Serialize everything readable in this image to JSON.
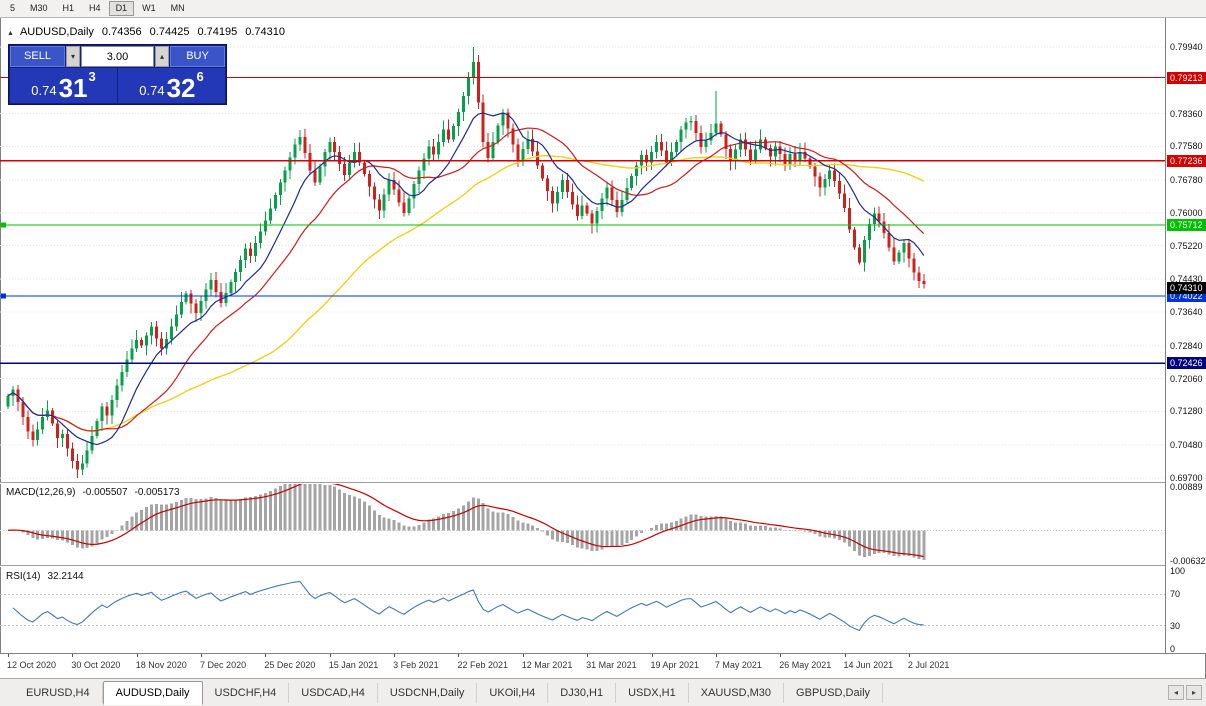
{
  "toolbar": {
    "timeframes": [
      "5",
      "M30",
      "H1",
      "H4",
      "D1",
      "W1",
      "MN"
    ],
    "active": "D1"
  },
  "chart_header": {
    "symbol": "AUDUSD,Daily",
    "open": "0.74356",
    "high": "0.74425",
    "low": "0.74195",
    "close": "0.74310"
  },
  "trade_widget": {
    "sell_label": "SELL",
    "buy_label": "BUY",
    "volume": "3.00",
    "sell_price_prefix": "0.74",
    "sell_price_main": "31",
    "sell_price_sup": "3",
    "buy_price_prefix": "0.74",
    "buy_price_main": "32",
    "buy_price_sup": "6"
  },
  "price_axis": {
    "ticks": [
      "0.79940",
      "0.78360",
      "0.77580",
      "0.76780",
      "0.76000",
      "0.75220",
      "0.74430",
      "0.73640",
      "0.72840",
      "0.72060",
      "0.71280",
      "0.70480",
      "0.69700"
    ],
    "levels": [
      {
        "value": 0.79213,
        "label": "0.79213",
        "color": "#d40000",
        "handle": false
      },
      {
        "value": 0.77236,
        "label": "0.77236",
        "color": "#d40000",
        "handle": false
      },
      {
        "value": 0.75712,
        "label": "0.75712",
        "color": "#00c000",
        "handle": true
      },
      {
        "value": 0.74022,
        "label": "0.74022",
        "color": "#0033e0",
        "handle": true
      },
      {
        "value": 0.72426,
        "label": "0.72426",
        "color": "#000080",
        "handle": false
      }
    ],
    "current_price": {
      "value": 0.7431,
      "label": "0.74310",
      "color": "#000000"
    }
  },
  "macd_panel": {
    "label": "MACD(12,26,9)",
    "value1": "-0.005507",
    "value2": "-0.005173",
    "axis_max": "0.00889",
    "axis_min": "-0.00632"
  },
  "rsi_panel": {
    "label": "RSI(14)",
    "value": "32.2144",
    "axis": [
      "100",
      "70",
      "30",
      "0"
    ],
    "levels": [
      70,
      30
    ]
  },
  "date_axis": [
    "12 Oct 2020",
    "30 Oct 2020",
    "18 Nov 2020",
    "7 Dec 2020",
    "25 Dec 2020",
    "15 Jan 2021",
    "3 Feb 2021",
    "22 Feb 2021",
    "12 Mar 2021",
    "31 Mar 2021",
    "19 Apr 2021",
    "7 May 2021",
    "26 May 2021",
    "14 Jun 2021",
    "2 Jul 2021"
  ],
  "tabs": {
    "items": [
      "EURUSD,H4",
      "AUDUSD,Daily",
      "USDCHF,H4",
      "USDCAD,H4",
      "USDCNH,Daily",
      "UKOil,H4",
      "DJ30,H1",
      "USDX,H1",
      "XAUUSD,M30",
      "GBPUSD,Daily"
    ],
    "active": "AUDUSD,Daily",
    "scroll_left": "◂",
    "scroll_right": "▸"
  },
  "chart_data": {
    "type": "candlestick",
    "symbol": "AUDUSD",
    "timeframe": "Daily",
    "price_range": [
      0.697,
      0.7994
    ],
    "up_color": "#07a04a",
    "down_color": "#d0201e",
    "first_open": 0.714,
    "closes": [
      0.7165,
      0.718,
      0.715,
      0.7115,
      0.708,
      0.706,
      0.7085,
      0.7115,
      0.713,
      0.71,
      0.7065,
      0.7075,
      0.704,
      0.701,
      0.699,
      0.7005,
      0.7035,
      0.707,
      0.7105,
      0.714,
      0.7118,
      0.7155,
      0.719,
      0.7222,
      0.7252,
      0.7278,
      0.7298,
      0.7285,
      0.7308,
      0.733,
      0.7302,
      0.7278,
      0.73,
      0.733,
      0.7358,
      0.7388,
      0.7408,
      0.7385,
      0.7362,
      0.739,
      0.7418,
      0.744,
      0.7412,
      0.7386,
      0.741,
      0.7436,
      0.746,
      0.7488,
      0.7515,
      0.7498,
      0.7528,
      0.7556,
      0.7582,
      0.761,
      0.7642,
      0.7672,
      0.77,
      0.7732,
      0.7762,
      0.778,
      0.7742,
      0.77,
      0.7672,
      0.771,
      0.7744,
      0.7768,
      0.7744,
      0.7716,
      0.769,
      0.7718,
      0.7744,
      0.772,
      0.7692,
      0.7662,
      0.7632,
      0.7605,
      0.7643,
      0.7678,
      0.7655,
      0.7625,
      0.76,
      0.7634,
      0.7668,
      0.77,
      0.7729,
      0.7758,
      0.7739,
      0.7768,
      0.7798,
      0.7774,
      0.7806,
      0.784,
      0.7877,
      0.7922,
      0.7958,
      0.7862,
      0.7768,
      0.773,
      0.7768,
      0.7808,
      0.7838,
      0.78,
      0.7762,
      0.7726,
      0.7752,
      0.7776,
      0.7746,
      0.7712,
      0.7682,
      0.7652,
      0.7622,
      0.765,
      0.7678,
      0.765,
      0.762,
      0.7592,
      0.7618,
      0.7598,
      0.7575,
      0.7604,
      0.7634,
      0.766,
      0.7631,
      0.7602,
      0.763,
      0.7659,
      0.7688,
      0.7713,
      0.7738,
      0.7719,
      0.7744,
      0.7768,
      0.7748,
      0.772,
      0.7744,
      0.7768,
      0.7798,
      0.7815,
      0.7818,
      0.779,
      0.7756,
      0.7772,
      0.779,
      0.7812,
      0.7786,
      0.7752,
      0.7722,
      0.775,
      0.7774,
      0.775,
      0.7726,
      0.775,
      0.7774,
      0.7754,
      0.7734,
      0.7758,
      0.774,
      0.7716,
      0.774,
      0.7722,
      0.7744,
      0.7729,
      0.771,
      0.7686,
      0.766,
      0.768,
      0.77,
      0.7676,
      0.7646,
      0.7612,
      0.756,
      0.7518,
      0.7482,
      0.7535,
      0.7574,
      0.7598,
      0.758,
      0.7552,
      0.7518,
      0.7484,
      0.7506,
      0.7528,
      0.7492,
      0.7458,
      0.7438,
      0.7431
    ],
    "overrides": {
      "14": {
        "l": 0.697
      },
      "94": {
        "h": 0.7994
      },
      "143": {
        "h": 0.789
      },
      "172": {
        "l": 0.7477
      },
      "185": {
        "l": 0.742
      }
    },
    "moving_averages": [
      {
        "period": 55,
        "color": "#ecd21c",
        "width": 1.4
      },
      {
        "period": 21,
        "color": "#cc1d1d",
        "width": 1.2
      },
      {
        "period": 10,
        "color": "#1c2a96",
        "width": 1.2
      }
    ],
    "hlines": [
      0.79213,
      0.77236,
      0.75712,
      0.74022,
      0.72426
    ],
    "indicators": {
      "macd": {
        "fast": 12,
        "slow": 26,
        "signal": 9,
        "main_value": -0.005507,
        "signal_value": -0.005173,
        "axis_max": 0.00889,
        "axis_min": -0.00632
      },
      "rsi": {
        "period": 14,
        "value": 32.2144,
        "levels": [
          70,
          30
        ],
        "range": [
          0,
          100
        ]
      }
    }
  }
}
